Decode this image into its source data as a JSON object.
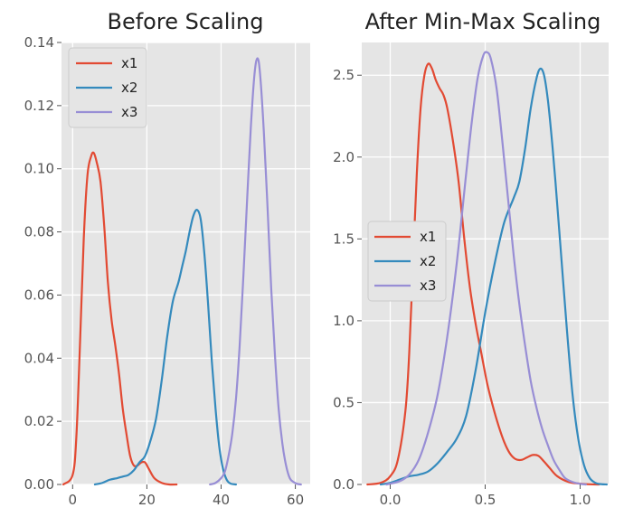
{
  "chart_data": [
    {
      "type": "line",
      "title": "Before Scaling",
      "xlabel": "",
      "ylabel": "",
      "xlim": [
        -3,
        64
      ],
      "ylim": [
        0,
        0.14
      ],
      "grid": true,
      "legend_position": "upper-left",
      "xticks": [
        0,
        20,
        40,
        60
      ],
      "xtick_labels": [
        "0",
        "20",
        "40",
        "60"
      ],
      "yticks": [
        0,
        0.02,
        0.04,
        0.06,
        0.08,
        0.1,
        0.12,
        0.14
      ],
      "ytick_labels": [
        "0.00",
        "0.02",
        "0.04",
        "0.06",
        "0.08",
        "0.10",
        "0.12",
        "0.14"
      ],
      "series": [
        {
          "name": "x1",
          "color": "#E24A33",
          "x": [
            -2.5,
            0,
            1,
            2,
            3,
            4,
            5,
            5.7,
            6.5,
            7.5,
            8.5,
            9.5,
            10.5,
            11.5,
            12.5,
            13.5,
            14.5,
            15.5,
            16.5,
            17.5,
            18.5,
            19.5,
            20.5,
            22,
            24,
            26,
            28
          ],
          "y": [
            0,
            0.003,
            0.015,
            0.045,
            0.078,
            0.098,
            0.104,
            0.105,
            0.102,
            0.096,
            0.082,
            0.064,
            0.052,
            0.044,
            0.035,
            0.024,
            0.016,
            0.009,
            0.006,
            0.006,
            0.007,
            0.007,
            0.005,
            0.002,
            0.0005,
            0,
            0
          ]
        },
        {
          "name": "x2",
          "color": "#348ABD",
          "x": [
            6,
            8,
            10,
            12,
            13.5,
            15,
            16.5,
            18,
            19.5,
            21,
            22.5,
            24,
            25.5,
            27,
            28.5,
            29.5,
            30.5,
            31.5,
            32.5,
            33.5,
            34.5,
            35.5,
            36.5,
            37.5,
            38.5,
            39.5,
            40.5,
            41.5,
            42.5,
            44
          ],
          "y": [
            0,
            0.0005,
            0.0015,
            0.002,
            0.0025,
            0.003,
            0.0045,
            0.007,
            0.009,
            0.014,
            0.021,
            0.033,
            0.047,
            0.058,
            0.064,
            0.069,
            0.074,
            0.08,
            0.085,
            0.087,
            0.084,
            0.073,
            0.057,
            0.039,
            0.024,
            0.012,
            0.005,
            0.0015,
            0.0003,
            0
          ]
        },
        {
          "name": "x3",
          "color": "#988ED5",
          "x": [
            37,
            38.5,
            40,
            41,
            42,
            43,
            44,
            45,
            46,
            47,
            48,
            49,
            49.8,
            50.5,
            51.5,
            52.5,
            53.5,
            54.5,
            55.5,
            56.5,
            57.5,
            58.5,
            59.5,
            60.5,
            61.5
          ],
          "y": [
            0,
            0.0005,
            0.002,
            0.004,
            0.009,
            0.016,
            0.027,
            0.044,
            0.066,
            0.09,
            0.113,
            0.13,
            0.135,
            0.13,
            0.112,
            0.088,
            0.062,
            0.041,
            0.024,
            0.013,
            0.006,
            0.002,
            0.0008,
            0.0002,
            0
          ]
        }
      ]
    },
    {
      "type": "line",
      "title": "After Min-Max Scaling",
      "xlabel": "",
      "ylabel": "",
      "xlim": [
        -0.15,
        1.15
      ],
      "ylim": [
        0,
        2.7
      ],
      "grid": true,
      "legend_position": "center-left",
      "xticks": [
        0.0,
        0.5,
        1.0
      ],
      "xtick_labels": [
        "0.0",
        "0.5",
        "1.0"
      ],
      "yticks": [
        0,
        0.5,
        1.0,
        1.5,
        2.0,
        2.5
      ],
      "ytick_labels": [
        "0.0",
        "0.5",
        "1.0",
        "1.5",
        "2.0",
        "2.5"
      ],
      "series": [
        {
          "name": "x1",
          "color": "#E24A33",
          "x": [
            -0.12,
            -0.05,
            0,
            0.04,
            0.08,
            0.1,
            0.12,
            0.14,
            0.16,
            0.18,
            0.2,
            0.22,
            0.24,
            0.26,
            0.28,
            0.3,
            0.33,
            0.36,
            0.39,
            0.42,
            0.45,
            0.48,
            0.51,
            0.54,
            0.57,
            0.6,
            0.63,
            0.66,
            0.69,
            0.72,
            0.75,
            0.78,
            0.81,
            0.84,
            0.88,
            0.94,
            1.0,
            1.05,
            1.1
          ],
          "y": [
            0,
            0.01,
            0.05,
            0.15,
            0.45,
            0.8,
            1.35,
            1.9,
            2.3,
            2.5,
            2.57,
            2.54,
            2.47,
            2.42,
            2.38,
            2.3,
            2.1,
            1.85,
            1.5,
            1.2,
            0.98,
            0.8,
            0.62,
            0.48,
            0.36,
            0.26,
            0.19,
            0.155,
            0.15,
            0.165,
            0.18,
            0.175,
            0.14,
            0.1,
            0.05,
            0.015,
            0.005,
            0.001,
            0
          ]
        },
        {
          "name": "x2",
          "color": "#348ABD",
          "x": [
            -0.05,
            0,
            0.05,
            0.1,
            0.15,
            0.2,
            0.25,
            0.3,
            0.35,
            0.4,
            0.45,
            0.5,
            0.55,
            0.6,
            0.65,
            0.68,
            0.71,
            0.74,
            0.77,
            0.79,
            0.81,
            0.83,
            0.85,
            0.87,
            0.9,
            0.93,
            0.96,
            0.99,
            1.02,
            1.05,
            1.08,
            1.11,
            1.14
          ],
          "y": [
            0,
            0.01,
            0.03,
            0.05,
            0.06,
            0.08,
            0.13,
            0.2,
            0.28,
            0.42,
            0.7,
            1.05,
            1.35,
            1.6,
            1.75,
            1.85,
            2.05,
            2.3,
            2.48,
            2.54,
            2.5,
            2.35,
            2.12,
            1.85,
            1.4,
            0.95,
            0.55,
            0.28,
            0.12,
            0.04,
            0.01,
            0.002,
            0
          ]
        },
        {
          "name": "x3",
          "color": "#988ED5",
          "x": [
            -0.02,
            0.05,
            0.1,
            0.15,
            0.2,
            0.25,
            0.3,
            0.35,
            0.4,
            0.43,
            0.46,
            0.49,
            0.51,
            0.53,
            0.56,
            0.59,
            0.62,
            0.65,
            0.68,
            0.71,
            0.74,
            0.77,
            0.8,
            0.83,
            0.86,
            0.89,
            0.92,
            0.96,
            1.0,
            1.03
          ],
          "y": [
            0,
            0.02,
            0.06,
            0.15,
            0.32,
            0.55,
            0.9,
            1.35,
            1.9,
            2.22,
            2.48,
            2.62,
            2.64,
            2.6,
            2.42,
            2.1,
            1.75,
            1.4,
            1.1,
            0.85,
            0.63,
            0.47,
            0.34,
            0.24,
            0.15,
            0.09,
            0.04,
            0.015,
            0.004,
            0
          ]
        }
      ]
    }
  ]
}
